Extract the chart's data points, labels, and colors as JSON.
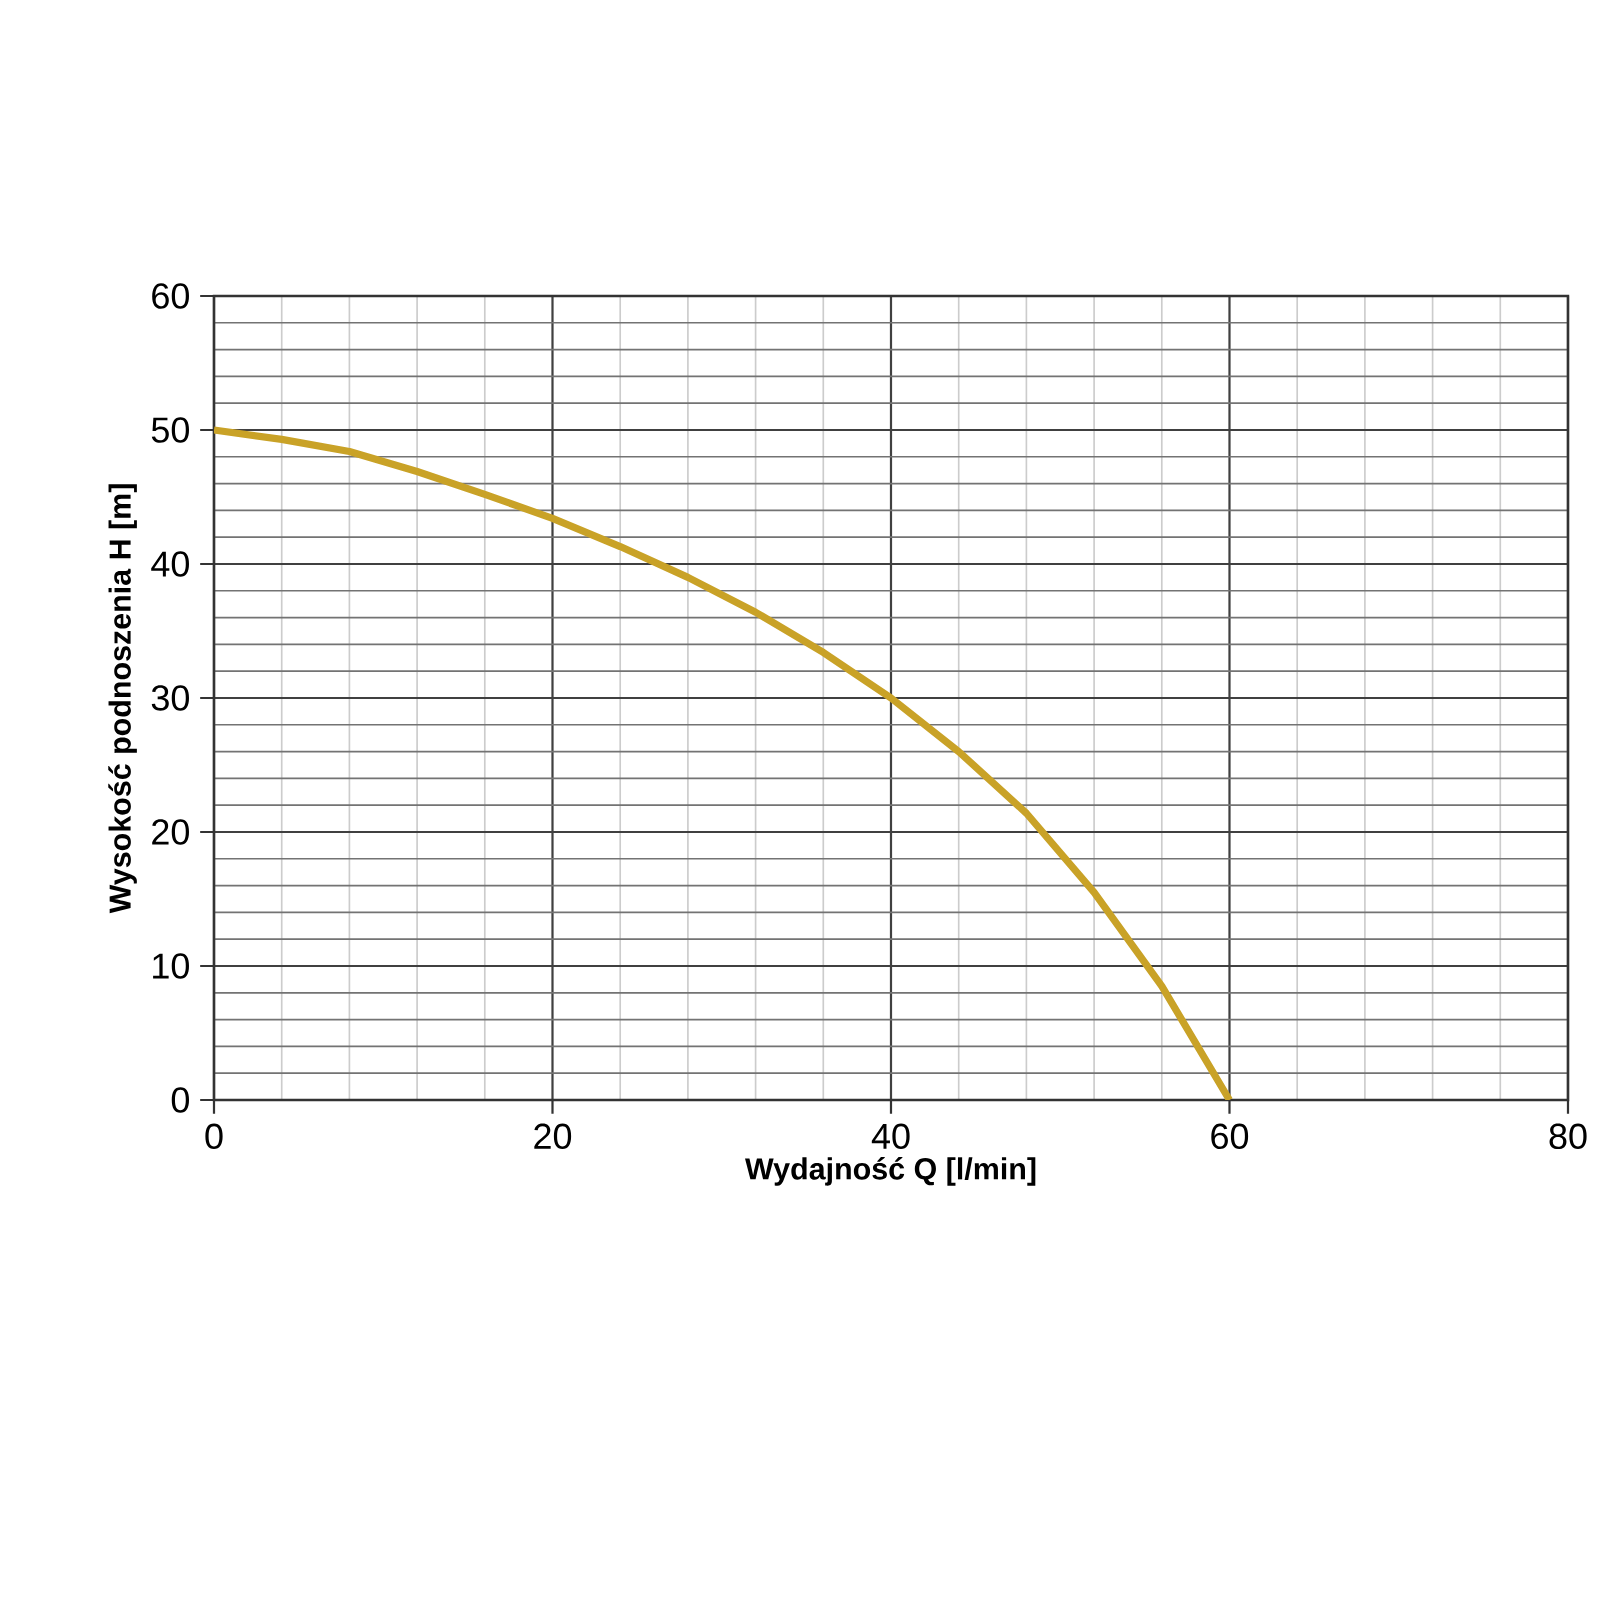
{
  "chart_data": {
    "type": "line",
    "xlabel": "Wydajność Q [l/min]",
    "ylabel": "Wysokość podnoszenia H [m]",
    "x": [
      0,
      4,
      8,
      12,
      16,
      20,
      24,
      28,
      32,
      36,
      40,
      44,
      48,
      52,
      56,
      60
    ],
    "series": [
      {
        "color": "#c9a227",
        "values": [
          50,
          49.3,
          48.4,
          46.9,
          45.2,
          43.4,
          41.3,
          39,
          36.4,
          33.4,
          30,
          26,
          21.4,
          15.5,
          8.5,
          0
        ]
      }
    ],
    "xlim": [
      0,
      80
    ],
    "ylim": [
      0,
      60
    ],
    "xticks": [
      0,
      20,
      40,
      60,
      80
    ],
    "yticks": [
      0,
      10,
      20,
      30,
      40,
      50,
      60
    ],
    "grid": true,
    "marker": "none",
    "line_style": "solid"
  }
}
